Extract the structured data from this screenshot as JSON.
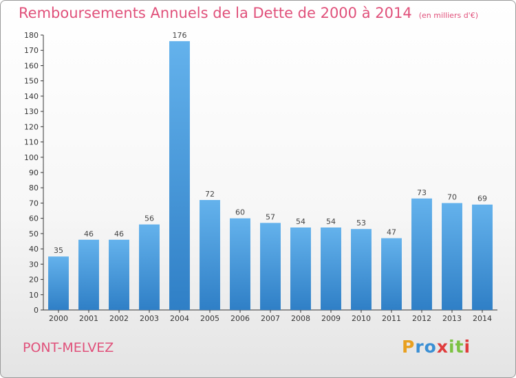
{
  "title": "Remboursements Annuels de la Dette de 2000 à 2014",
  "subtitle": "(en milliers d'€)",
  "commune": "PONT-MELVEZ",
  "logo": {
    "letters": [
      "P",
      "r",
      "o",
      "x",
      "i",
      "t",
      "i"
    ],
    "colors": [
      "#e8a020",
      "#3a8fd4",
      "#3a8fd4",
      "#e03c3c",
      "#7cc242",
      "#7cc242",
      "#e03c3c"
    ]
  },
  "colors": {
    "bar_top": "#64b2ec",
    "bar_bottom": "#2f7fc6",
    "title": "#e0507a",
    "label": "#444444"
  },
  "chart_data": {
    "type": "bar",
    "categories": [
      "2000",
      "2001",
      "2002",
      "2003",
      "2004",
      "2005",
      "2006",
      "2007",
      "2008",
      "2009",
      "2010",
      "2011",
      "2012",
      "2013",
      "2014"
    ],
    "values": [
      35,
      46,
      46,
      56,
      176,
      72,
      60,
      57,
      54,
      54,
      53,
      47,
      73,
      70,
      69
    ],
    "title": "Remboursements Annuels de la Dette de 2000 à 2014",
    "xlabel": "",
    "ylabel": "",
    "ylim": [
      0,
      180
    ],
    "yticks": [
      0,
      10,
      20,
      30,
      40,
      50,
      60,
      70,
      80,
      90,
      100,
      110,
      120,
      130,
      140,
      150,
      160,
      170,
      180
    ],
    "grid": false,
    "legend": "none"
  }
}
